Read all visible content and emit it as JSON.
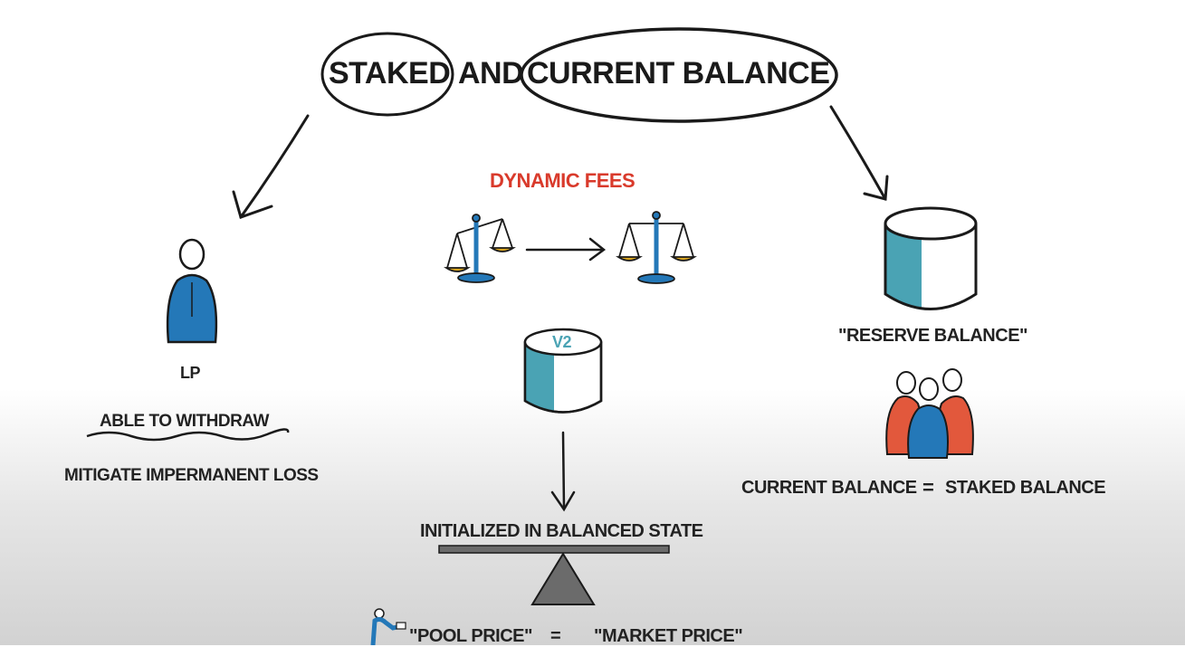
{
  "title": {
    "staked": "STAKED",
    "and": "AND",
    "current_balance": "CURRENT BALANCE"
  },
  "left": {
    "lp_label": "LP",
    "withdraw_label": "ABLE TO WITHDRAW",
    "mitigate_label": "MITIGATE IMPERMANENT LOSS"
  },
  "center": {
    "dynamic_fees": "DYNAMIC FEES",
    "v2_label": "V2",
    "initialized_label": "INITIALIZED IN BALANCED STATE",
    "pool_price": "\"POOL PRICE\"",
    "equals": "=",
    "market_price": "\"MARKET PRICE\""
  },
  "right": {
    "reserve_balance": "\"RESERVE BALANCE\"",
    "current_balance": "CURRENT BALANCE",
    "equals": "=",
    "staked_balance": "STAKED BALANCE"
  },
  "colors": {
    "accent_red": "#d93a2b",
    "teal": "#4aa3b4",
    "blue": "#2478b8",
    "orange": "#e2583c",
    "gold": "#d9a520",
    "ink": "#1a1a1a"
  }
}
